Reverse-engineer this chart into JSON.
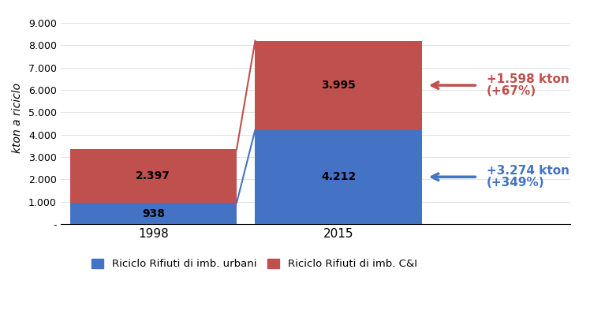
{
  "categories": [
    "1998",
    "2015"
  ],
  "blue_values": [
    938,
    4212
  ],
  "red_values": [
    2397,
    3995
  ],
  "blue_color": "#4472C4",
  "red_color": "#C0504D",
  "ylabel": "kton a riciclo",
  "ylim": [
    0,
    9500
  ],
  "yticks": [
    0,
    1000,
    2000,
    3000,
    4000,
    5000,
    6000,
    7000,
    8000,
    9000
  ],
  "ytick_labels": [
    "-",
    "1.000",
    "2.000",
    "3.000",
    "4.000",
    "5.000",
    "6.000",
    "7.000",
    "8.000",
    "9.000"
  ],
  "legend_blue": "Riciclo Rifiuti di imb. urbani",
  "legend_red": "Riciclo Rifiuti di imb. C&I",
  "annotation_red_line1": "+1.598 kton",
  "annotation_red_line2": "(+67%)",
  "annotation_blue_line1": "+3.274 kton",
  "annotation_blue_line2": "(+349%)",
  "bg_color": "#FFFFFF"
}
